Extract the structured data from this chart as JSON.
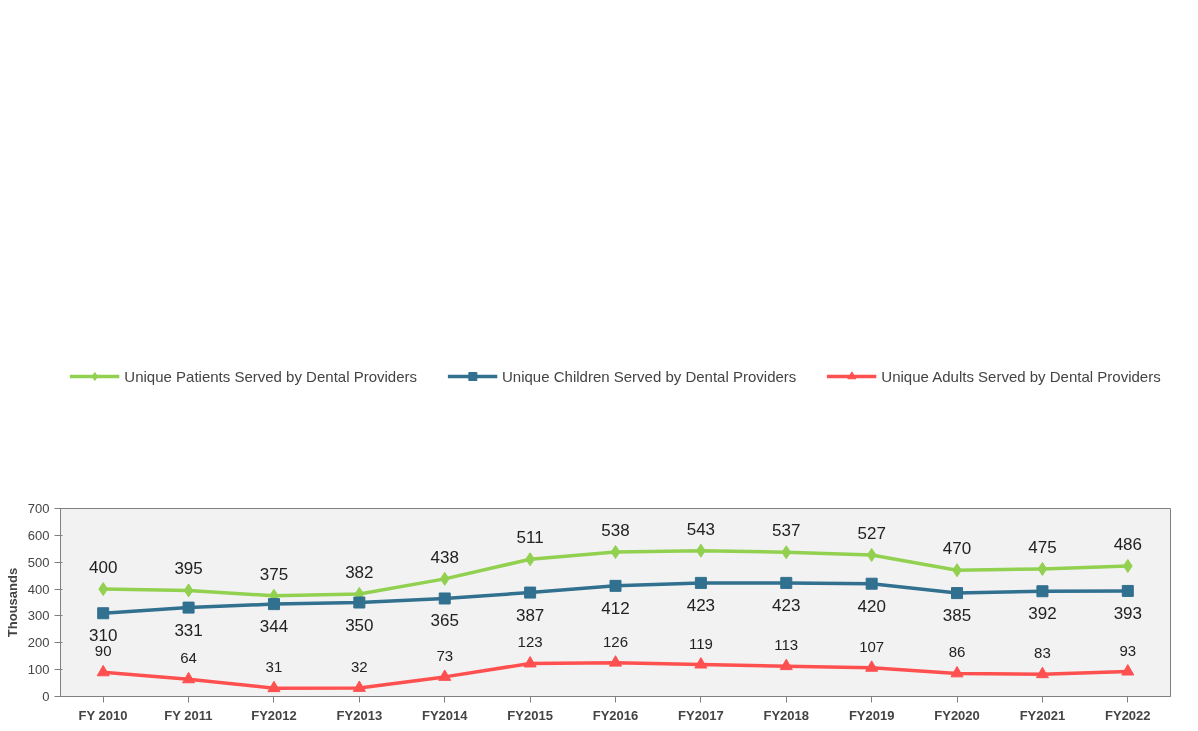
{
  "chart_data": {
    "type": "line",
    "ylabel": "Thousands",
    "categories": [
      "FY 2010",
      "FY 2011",
      "FY2012",
      "FY2013",
      "FY2014",
      "FY2015",
      "FY2016",
      "FY2017",
      "FY2018",
      "FY2019",
      "FY2020",
      "FY2021",
      "FY2022"
    ],
    "series": [
      {
        "name": "Unique Patients Served by Dental Providers",
        "color": "#92d050",
        "marker": "diamond",
        "values": [
          400,
          395,
          375,
          382,
          438,
          511,
          538,
          543,
          537,
          527,
          470,
          475,
          486
        ]
      },
      {
        "name": "Unique Children Served by Dental Providers",
        "color": "#31708f",
        "marker": "square",
        "values": [
          310,
          331,
          344,
          350,
          365,
          387,
          412,
          423,
          423,
          420,
          385,
          392,
          393
        ]
      },
      {
        "name": "Unique Adults Served by Dental Providers",
        "color": "#ff5050",
        "marker": "triangle",
        "values": [
          90,
          64,
          31,
          32,
          73,
          123,
          126,
          119,
          113,
          107,
          86,
          83,
          93
        ]
      }
    ],
    "ylim": [
      0,
      700
    ],
    "yticks": [
      0,
      100,
      200,
      300,
      400,
      500,
      600,
      700
    ],
    "grid": false,
    "legend": "top",
    "data_labels": true,
    "line_style": "solid"
  }
}
